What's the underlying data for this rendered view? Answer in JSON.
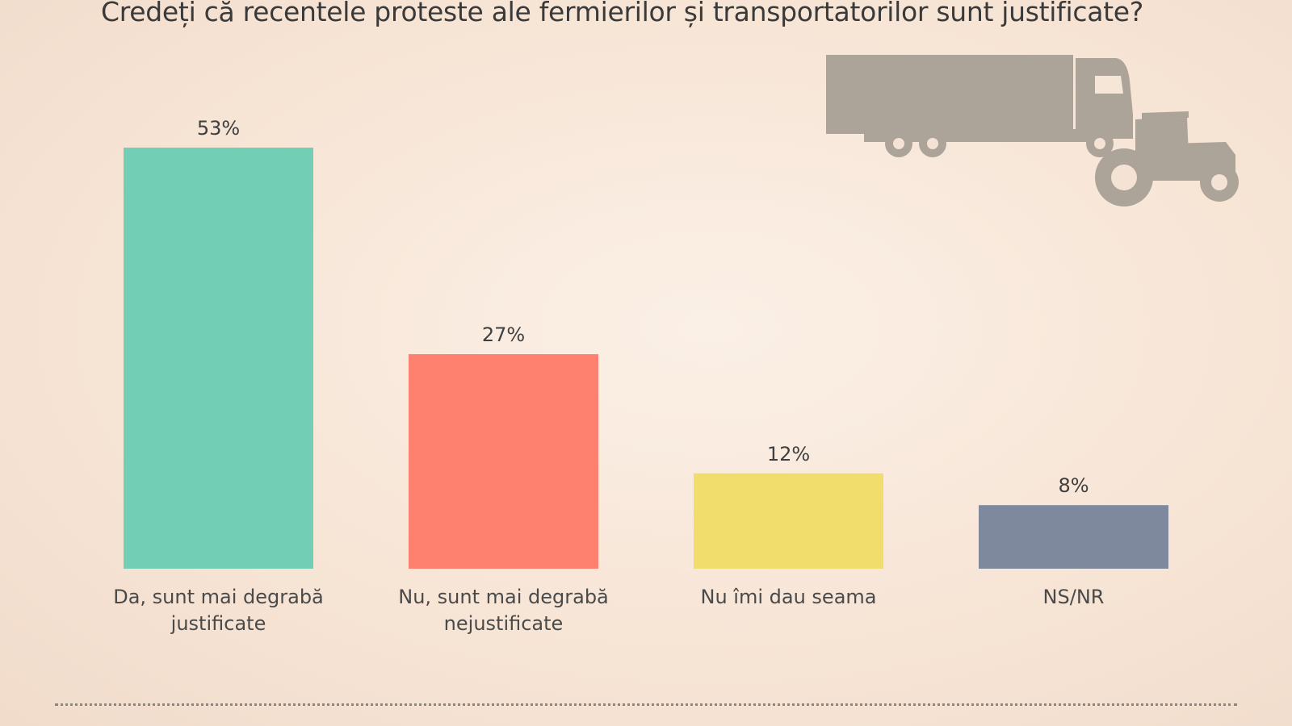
{
  "chart_data": {
    "type": "bar",
    "title": "Credeți că recentele proteste ale fermierilor și transportatorilor sunt justificate?",
    "categories": [
      [
        "Da, sunt mai degrabă",
        "justificate"
      ],
      [
        "Nu, sunt mai degrabă",
        "nejustificate"
      ],
      [
        "Nu îmi dau seama"
      ],
      [
        "NS/NR"
      ]
    ],
    "values": [
      53,
      27,
      12,
      8
    ],
    "value_labels": [
      "53%",
      "27%",
      "12%",
      "8%"
    ],
    "colors": [
      "#72cfb6",
      "#fe8170",
      "#f0dd6c",
      "#7e899e"
    ],
    "ylim": [
      0,
      53
    ],
    "xlabel": "",
    "ylabel": "",
    "grid": false
  },
  "illustration": {
    "icons": [
      "truck-icon",
      "tractor-icon"
    ],
    "color": "#aca399"
  }
}
